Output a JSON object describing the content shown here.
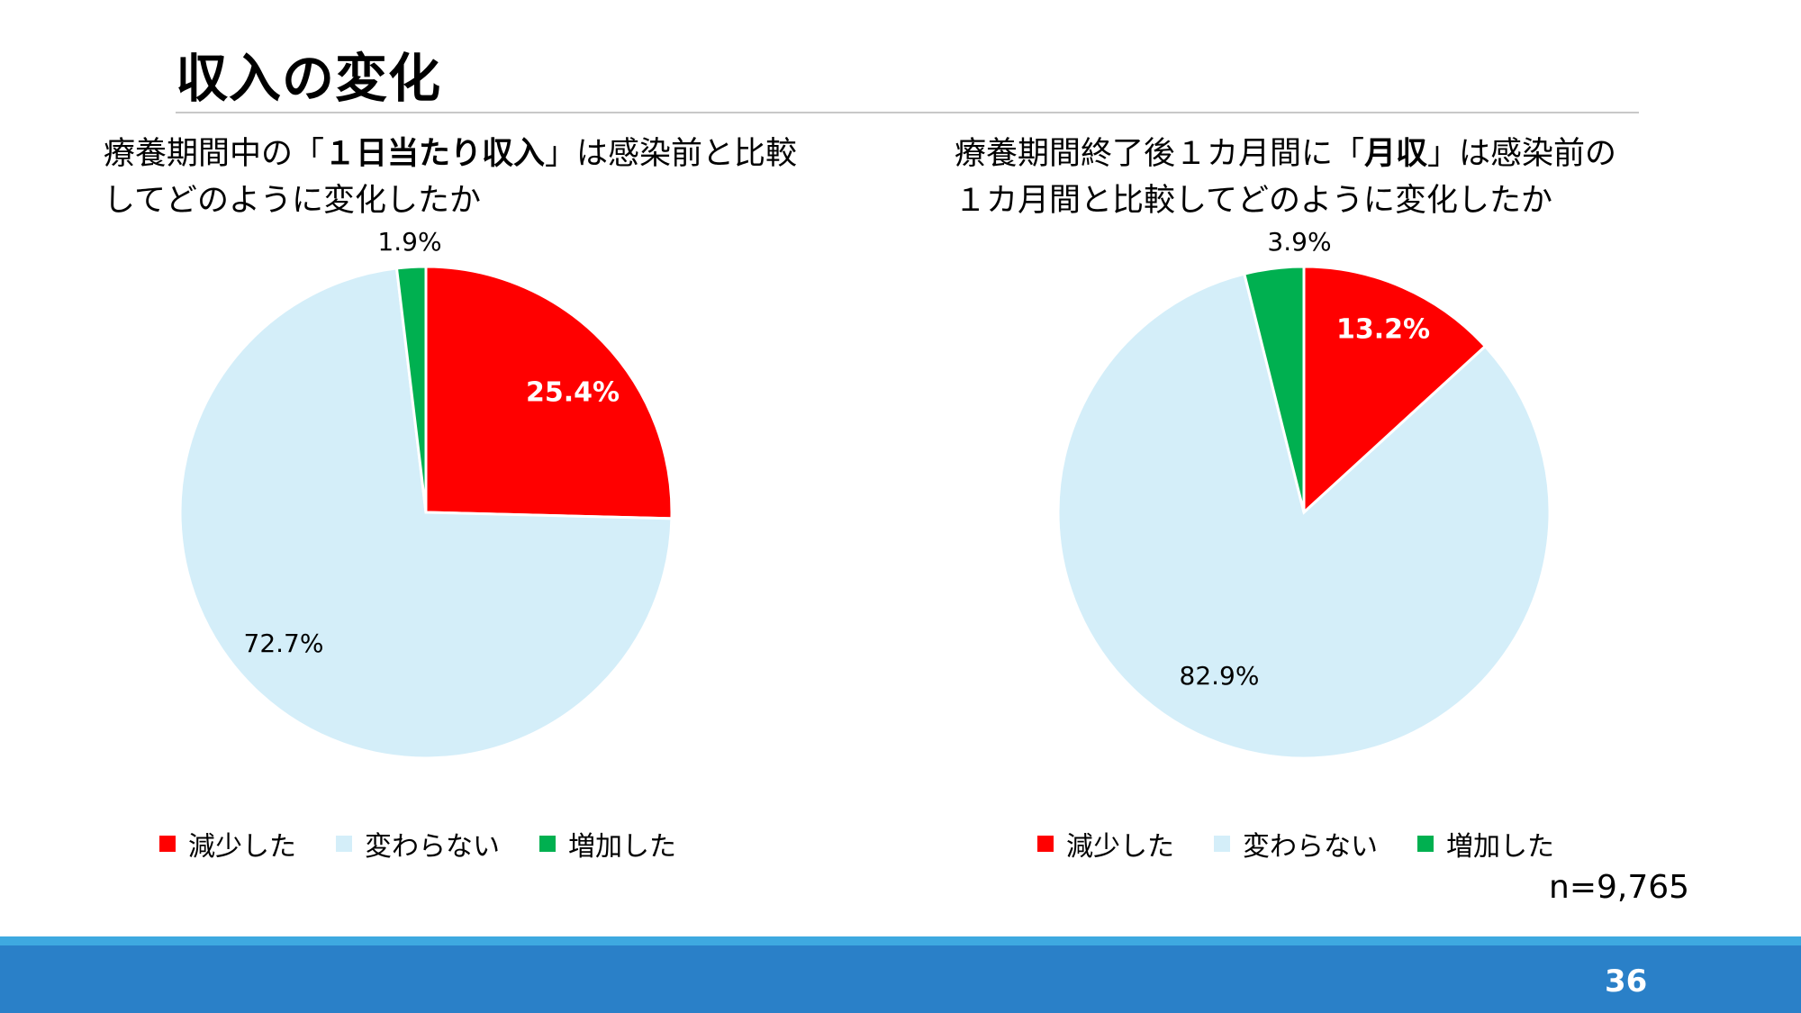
{
  "page": {
    "title": "収入の変化",
    "sample_size": "n=9,765",
    "page_number": "36"
  },
  "questions": [
    {
      "pre": "療養期間中の「",
      "bold": "１日当たり収入",
      "post": "」は感染前と比較\nしてどのように変化したか"
    },
    {
      "pre": "療養期間終了後１カ月間に「",
      "bold": "月収",
      "post": "」は感染前の\n１カ月間と比較してどのように変化したか"
    }
  ],
  "legend": {
    "items": [
      {
        "label": "減少した",
        "color": "#ff0000"
      },
      {
        "label": "変わらない",
        "color": "#d4eef9"
      },
      {
        "label": "増加した",
        "color": "#00b050"
      }
    ]
  },
  "chart_data": [
    {
      "type": "pie",
      "categories": [
        "減少した",
        "変わらない",
        "増加した"
      ],
      "values": [
        25.4,
        72.7,
        1.9
      ],
      "labels": [
        "25.4%",
        "72.7%",
        "1.9%"
      ],
      "colors": [
        "#ff0000",
        "#d4eef9",
        "#00b050"
      ],
      "start": "12 o'clock, clockwise",
      "legend": "bottom"
    },
    {
      "type": "pie",
      "categories": [
        "減少した",
        "変わらない",
        "増加した"
      ],
      "values": [
        13.2,
        82.9,
        3.9
      ],
      "labels": [
        "13.2%",
        "82.9%",
        "3.9%"
      ],
      "colors": [
        "#ff0000",
        "#d4eef9",
        "#00b050"
      ],
      "start": "12 o'clock, clockwise",
      "legend": "bottom"
    }
  ]
}
